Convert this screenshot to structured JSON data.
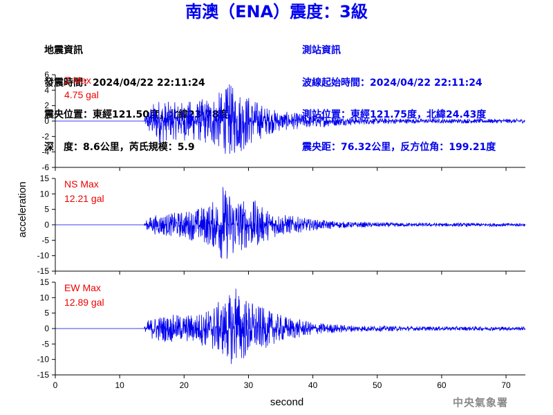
{
  "title": "南澳（ENA）震度：3級",
  "earthquake_info": {
    "heading": "地震資訊",
    "origin_time": "發震時間：2024/04/22 22:11:24",
    "epicenter": "震央位置：東經121.50度，北緯23.78度",
    "depth_magnitude": "深　度：8.6公里，芮氏規模：5.9"
  },
  "station_info": {
    "heading": "測站資訊",
    "wave_start": "波線起始時間：2024/04/22 22:11:24",
    "station_location": "測站位置：東經121.75度，北緯24.43度",
    "distance_azimuth": "震央距：76.32公里，反方位角：199.21度"
  },
  "agency": "中央氣象署",
  "colors": {
    "title": "#0000ee",
    "trace": "#0000ee",
    "max_label": "#ee0000",
    "axis": "#000000"
  },
  "chart_data": {
    "type": "line",
    "xlabel": "second",
    "ylabel": "acceleration",
    "xlim": [
      0,
      73
    ],
    "xticks": [
      0,
      10,
      20,
      30,
      40,
      50,
      60,
      70
    ],
    "signal_onset_seconds": 13.8,
    "panels": [
      {
        "component": "Z",
        "max_label": "Z Max",
        "max_value_label": "4.75 gal",
        "peak": 4.75,
        "ylim": [
          -6,
          6
        ],
        "yticks": [
          -6,
          -4,
          -2,
          0,
          2,
          4,
          6
        ],
        "envelope": [
          [
            13.8,
            0.2
          ],
          [
            14.5,
            1.8
          ],
          [
            16,
            3.0
          ],
          [
            18,
            2.4
          ],
          [
            20,
            2.6
          ],
          [
            22,
            2.7
          ],
          [
            24,
            3.2
          ],
          [
            26,
            4.0
          ],
          [
            27,
            4.75
          ],
          [
            28,
            4.4
          ],
          [
            29,
            4.0
          ],
          [
            31,
            2.8
          ],
          [
            33,
            1.8
          ],
          [
            35,
            1.3
          ],
          [
            37,
            1.1
          ],
          [
            40,
            0.9
          ],
          [
            45,
            0.55
          ],
          [
            50,
            0.4
          ],
          [
            55,
            0.32
          ],
          [
            60,
            0.3
          ],
          [
            65,
            0.3
          ],
          [
            73,
            0.28
          ]
        ]
      },
      {
        "component": "NS",
        "max_label": "NS Max",
        "max_value_label": "12.21 gal",
        "peak": 12.21,
        "ylim": [
          -15,
          15
        ],
        "yticks": [
          -15,
          -10,
          -5,
          0,
          5,
          10,
          15
        ],
        "envelope": [
          [
            13.8,
            0.4
          ],
          [
            14.5,
            2.5
          ],
          [
            16,
            3.5
          ],
          [
            18,
            3.8
          ],
          [
            20,
            4.5
          ],
          [
            22,
            5.5
          ],
          [
            24,
            7.0
          ],
          [
            25,
            8.5
          ],
          [
            26,
            12.21
          ],
          [
            28,
            10.5
          ],
          [
            29,
            8.5
          ],
          [
            30,
            7.5
          ],
          [
            31,
            8.0
          ],
          [
            32,
            6.0
          ],
          [
            34,
            4.2
          ],
          [
            36,
            3.2
          ],
          [
            38,
            2.5
          ],
          [
            40,
            1.8
          ],
          [
            45,
            1.0
          ],
          [
            50,
            0.8
          ],
          [
            55,
            0.65
          ],
          [
            60,
            0.6
          ],
          [
            65,
            0.6
          ],
          [
            73,
            0.55
          ]
        ]
      },
      {
        "component": "EW",
        "max_label": "EW Max",
        "max_value_label": "12.89 gal",
        "peak": 12.89,
        "ylim": [
          -15,
          15
        ],
        "yticks": [
          -15,
          -10,
          -5,
          0,
          5,
          10,
          15
        ],
        "envelope": [
          [
            13.8,
            0.4
          ],
          [
            14.5,
            3.0
          ],
          [
            16,
            4.2
          ],
          [
            18,
            4.5
          ],
          [
            20,
            4.5
          ],
          [
            22,
            5.0
          ],
          [
            24,
            6.5
          ],
          [
            25,
            8.5
          ],
          [
            26,
            9.0
          ],
          [
            28,
            12.89
          ],
          [
            29,
            11.0
          ],
          [
            30,
            9.5
          ],
          [
            31,
            8.5
          ],
          [
            32,
            7.0
          ],
          [
            34,
            5.0
          ],
          [
            36,
            4.0
          ],
          [
            38,
            3.0
          ],
          [
            40,
            2.0
          ],
          [
            45,
            1.2
          ],
          [
            50,
            0.9
          ],
          [
            55,
            0.75
          ],
          [
            60,
            0.7
          ],
          [
            65,
            0.7
          ],
          [
            73,
            0.65
          ]
        ]
      }
    ]
  }
}
